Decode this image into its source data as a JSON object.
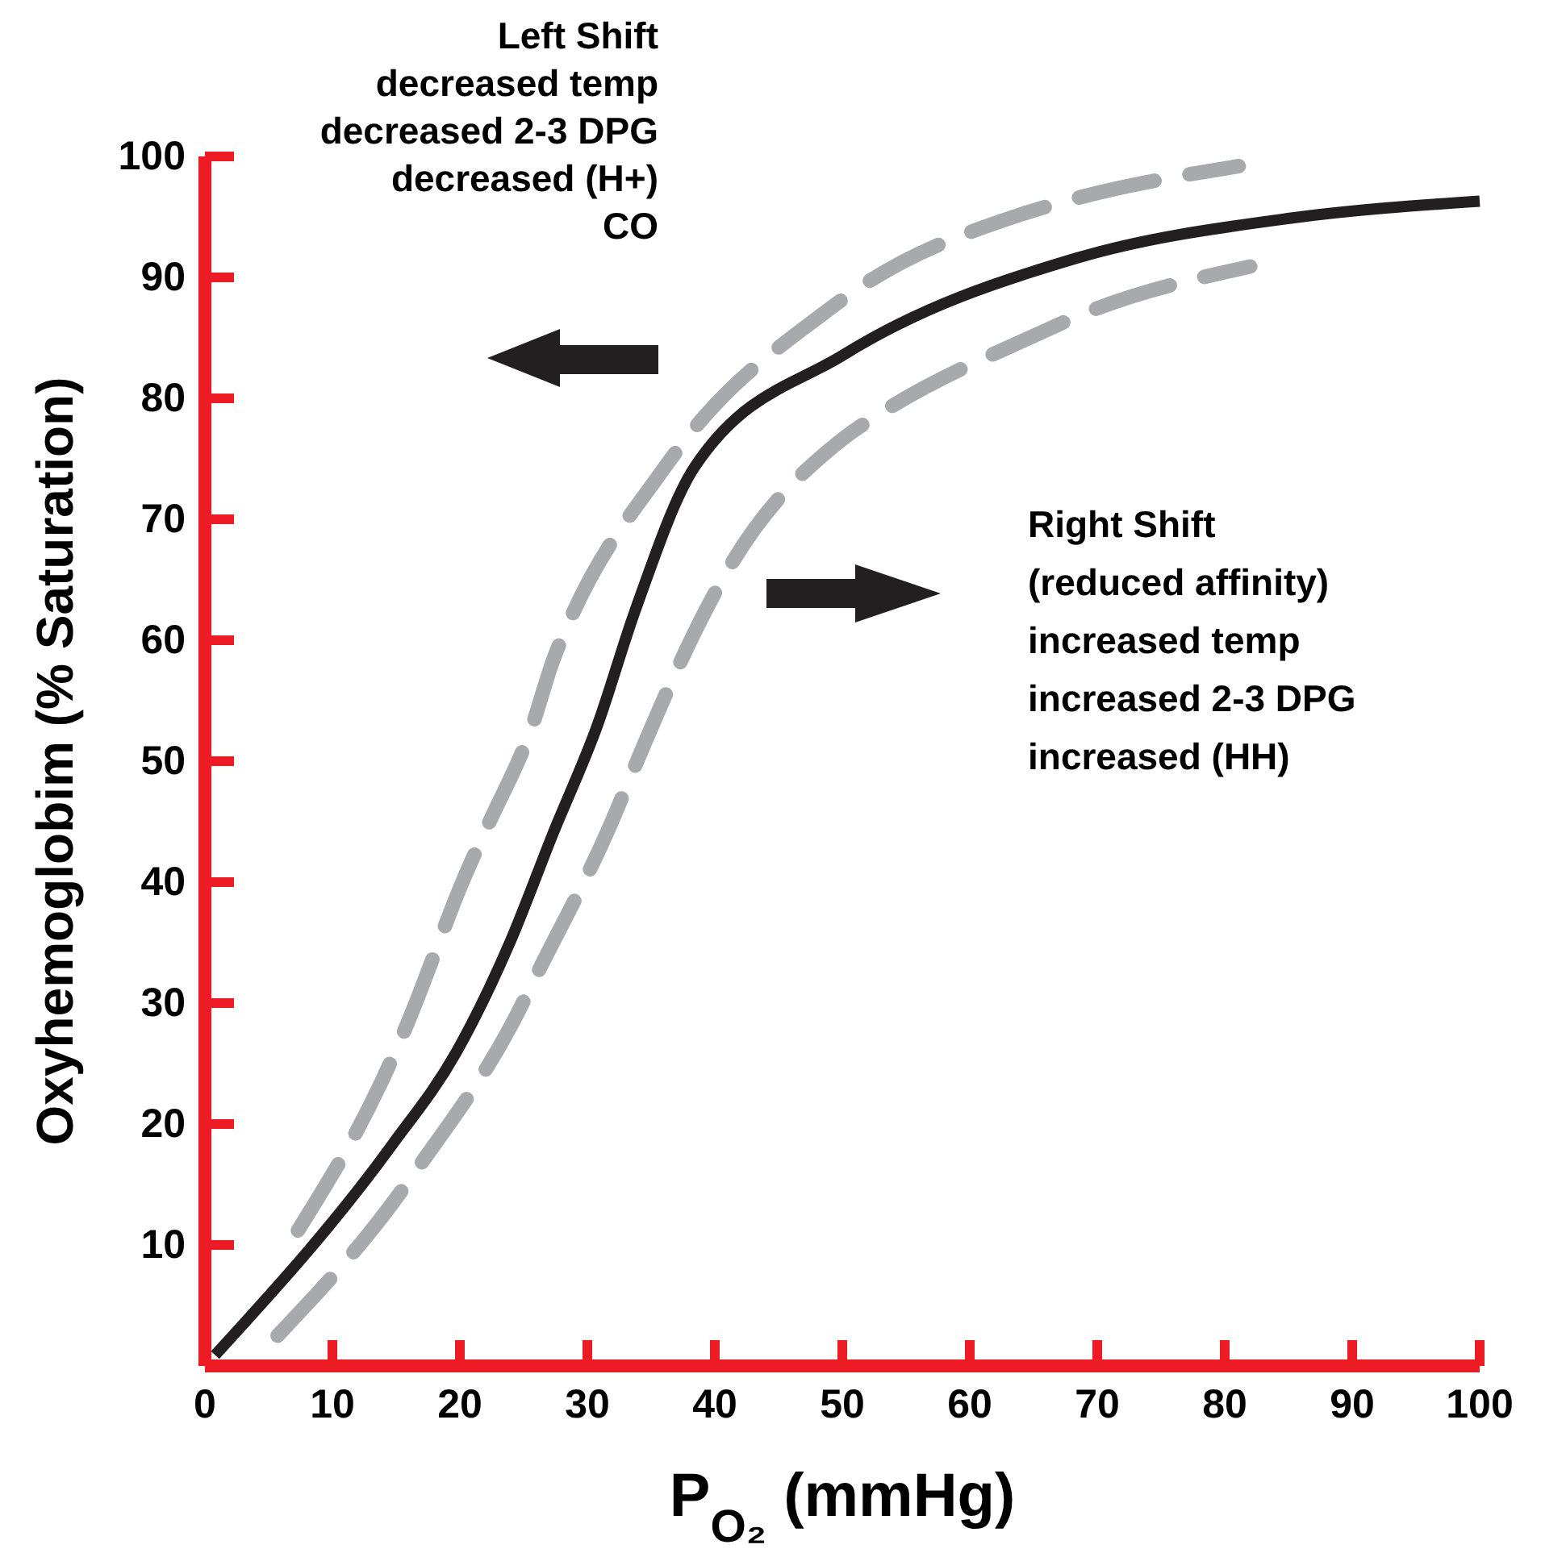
{
  "chart_data": {
    "type": "line",
    "xlabel": "P$_{O₂}$ (mmHg)",
    "ylabel": "Oxyhemoglobim (% Saturation)",
    "xlim": [
      0,
      100
    ],
    "xticks": [
      0,
      10,
      20,
      30,
      40,
      50,
      60,
      70,
      80,
      90,
      100
    ],
    "ylim": [
      0,
      100
    ],
    "yticks": [
      10,
      20,
      30,
      40,
      50,
      60,
      70,
      80,
      90,
      100
    ],
    "series": [
      {
        "color": "#a7a9ac",
        "line_style": "dashed",
        "x": [
          7.3,
          13.9,
          15.6,
          20.6,
          22.2,
          25.7,
          27.3,
          28.6,
          35.8,
          38,
          48.5,
          51.4,
          64,
          67.5,
          81.1
        ],
        "values": [
          11.2,
          23.6,
          27.6,
          41,
          44.7,
          53,
          58.3,
          61.6,
          73.9,
          77,
          87,
          89.2,
          95.2,
          96.3,
          99.2
        ]
      },
      {
        "color": "#a7a9ac",
        "line_style": "dashed",
        "x": [
          5.7,
          14.6,
          16.8,
          24.2,
          26.1,
          32,
          33.3,
          39.2,
          40.9,
          50.1,
          53.2,
          65.3,
          68.7,
          82
        ],
        "values": [
          2.5,
          13.3,
          16.5,
          28.5,
          32.5,
          45.2,
          48.5,
          62.3,
          65.6,
          76.7,
          78.9,
          85.3,
          86.9,
          90.9
        ]
      },
      {
        "color": "#231f20",
        "line_style": "solid",
        "x": [
          0.8,
          14.7,
          19.7,
          24,
          27.3,
          30.8,
          33.7,
          38.4,
          50.1,
          68.4,
          85.2,
          100
        ],
        "values": [
          0.9,
          18.3,
          25.9,
          35.2,
          44,
          53,
          62.3,
          74.3,
          83.6,
          91.6,
          94.9,
          96.3
        ]
      }
    ],
    "annotations": [
      "Left Shift\ndecreased temp\ndecreased 2-3 DPG\ndecreased (H+)\nCO",
      "Right Shift\n(reduced affinity)\nincreased temp\nincreased 2-3 DPG\nincreased (HH)"
    ],
    "grid": false
  }
}
